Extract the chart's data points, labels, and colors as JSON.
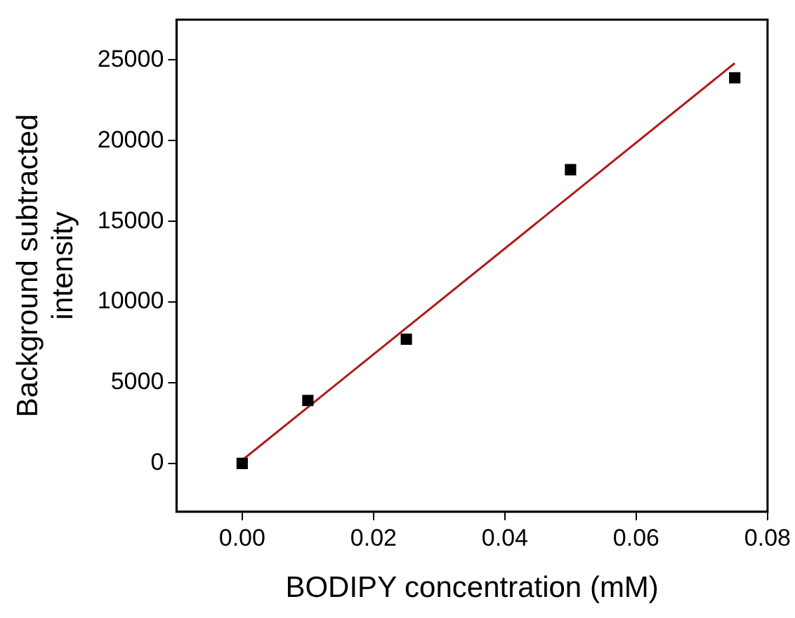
{
  "chart_data": {
    "type": "scatter",
    "xlabel": "BODIPY concentration (mM)",
    "ylabel": "Background subtracted intensity",
    "xlim": [
      -0.01,
      0.08
    ],
    "xticks": [
      {
        "value": 0,
        "label": "0.00"
      },
      {
        "value": 0.02,
        "label": "0.02"
      },
      {
        "value": 0.04,
        "label": "0.04"
      },
      {
        "value": 0.06,
        "label": "0.06"
      },
      {
        "value": 0.08,
        "label": "0.08"
      }
    ],
    "ylim": [
      -3000,
      27500
    ],
    "yticks": [
      0,
      5000,
      10000,
      15000,
      20000,
      25000
    ],
    "grid": false,
    "legend": false,
    "series": [
      {
        "color": "#000000",
        "marker": "square",
        "x": [
          0,
          0.01,
          0.025,
          0.05,
          0.075
        ],
        "values": [
          0,
          3900,
          7700,
          18200,
          23900
        ]
      },
      {
        "type": "line",
        "color": "#b01c1c",
        "marker": "none",
        "line_style": "solid",
        "x": [
          0,
          0.075
        ],
        "values": [
          200,
          24800
        ]
      }
    ]
  }
}
